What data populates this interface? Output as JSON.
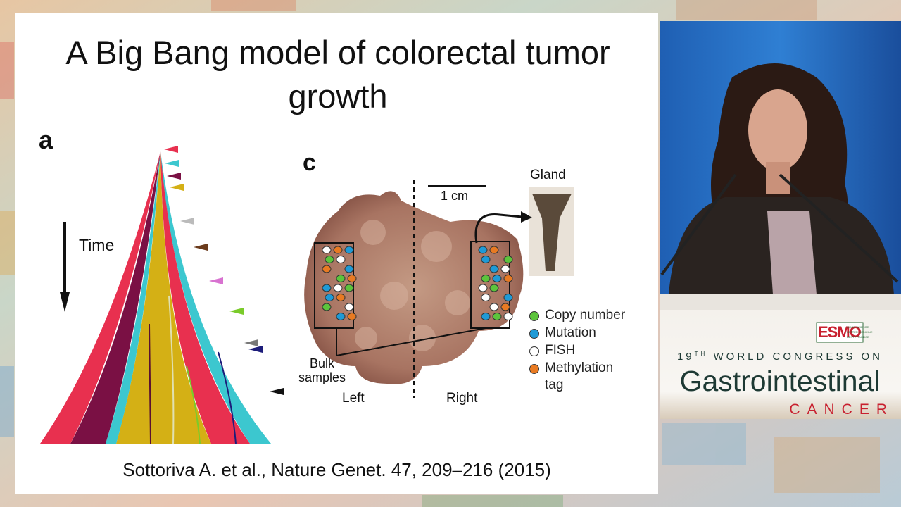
{
  "slide": {
    "title": "A Big Bang model of colorectal tumor growth",
    "panel_a": {
      "label": "a",
      "time": "Time"
    },
    "panel_c": {
      "label": "c",
      "scale": "1 cm",
      "gland": "Gland",
      "bulk_samples": "Bulk samples",
      "left": "Left",
      "right": "Right",
      "legend": [
        "Copy number",
        "Mutation",
        "FISH",
        "Methylation tag"
      ]
    },
    "citation": "Sottoriva A. et al., Nature Genet. 47, 209–216 (2015)"
  },
  "branding": {
    "logo": "ESMO",
    "tagline": [
      "GOOD SCIENCE",
      "BETTER MEDICINE",
      "BEST PRACTICE"
    ],
    "congress_number": "19",
    "ordinal": "TH",
    "congress": "WORLD CONGRESS ON",
    "event": "Gastrointestinal",
    "subject": "CANCER"
  }
}
